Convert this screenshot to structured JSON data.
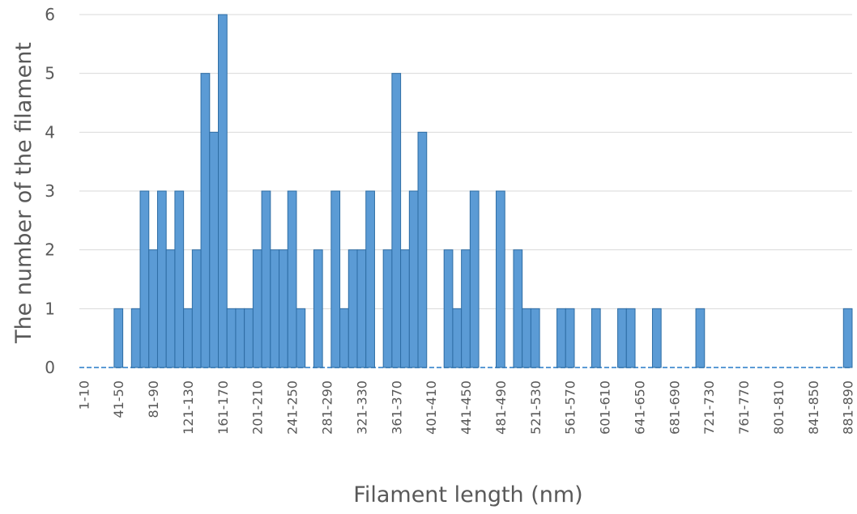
{
  "chart_data": {
    "type": "bar",
    "xlabel": "Filament length (nm)",
    "ylabel": "The number of the filament",
    "ylim": [
      0,
      6
    ],
    "yticks": [
      0,
      1,
      2,
      3,
      4,
      5,
      6
    ],
    "grid": true,
    "bin_width": 10,
    "bin_start": 1,
    "bin_count": 89,
    "x_tick_labels": [
      "1-10",
      "41-50",
      "81-90",
      "121-130",
      "161-170",
      "201-210",
      "241-250",
      "281-290",
      "321-330",
      "361-370",
      "401-410",
      "441-450",
      "481-490",
      "521-530",
      "561-570",
      "601-610",
      "641-650",
      "681-690",
      "721-730",
      "761-770",
      "801-810",
      "841-850",
      "881-890"
    ],
    "values": [
      0,
      0,
      0,
      0,
      1,
      0,
      1,
      3,
      2,
      3,
      2,
      3,
      1,
      2,
      5,
      4,
      6,
      1,
      1,
      1,
      2,
      3,
      2,
      2,
      3,
      1,
      0,
      2,
      0,
      3,
      1,
      2,
      2,
      3,
      0,
      2,
      5,
      2,
      3,
      4,
      0,
      0,
      2,
      1,
      2,
      3,
      0,
      0,
      3,
      0,
      2,
      1,
      1,
      0,
      0,
      1,
      1,
      0,
      0,
      1,
      0,
      0,
      1,
      1,
      0,
      0,
      1,
      0,
      0,
      0,
      0,
      1,
      0,
      0,
      0,
      0,
      0,
      0,
      0,
      0,
      0,
      0,
      0,
      0,
      0,
      0,
      0,
      0,
      1
    ],
    "colors": {
      "bar": "#5b9bd5",
      "bar_edge": "#2e6da4",
      "grid": "#d9d9d9",
      "text": "#595959"
    }
  }
}
